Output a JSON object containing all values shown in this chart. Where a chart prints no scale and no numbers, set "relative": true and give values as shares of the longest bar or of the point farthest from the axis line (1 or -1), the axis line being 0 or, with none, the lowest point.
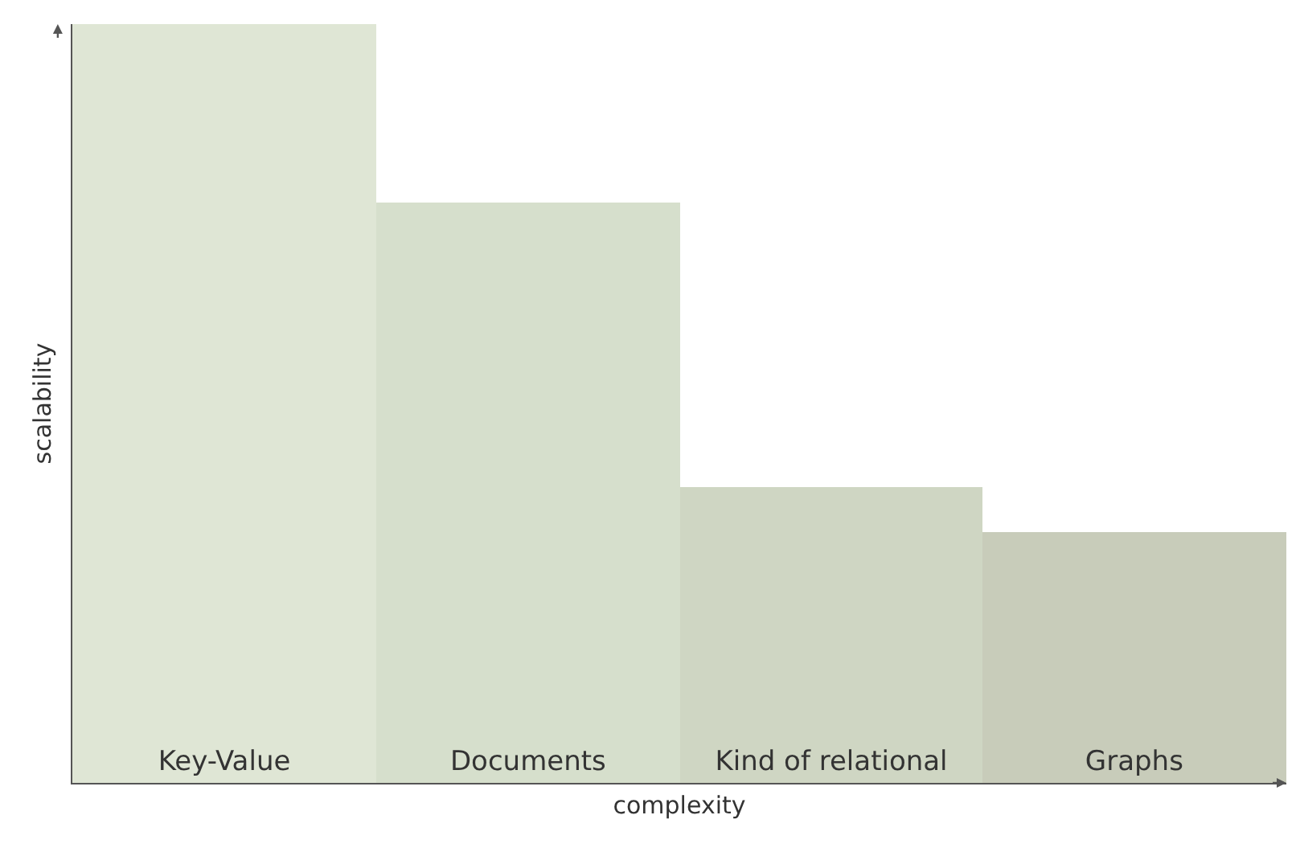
{
  "chart_data": {
    "type": "bar",
    "relative": true,
    "xlabel": "complexity",
    "ylabel": "scalability",
    "categories": [
      "Key-Value",
      "Documents",
      "Kind of relational",
      "Graphs"
    ],
    "values": [
      1,
      0.765,
      0.39,
      0.33
    ],
    "colors": [
      "#dfe6d5",
      "#d6dfcc",
      "#cfd6c3",
      "#c8ccba"
    ]
  }
}
